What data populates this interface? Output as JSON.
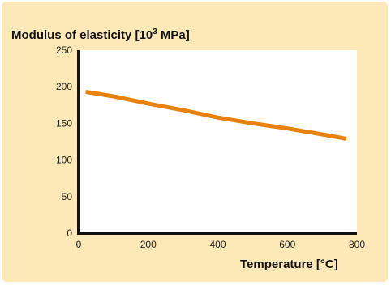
{
  "chart_data": {
    "type": "line",
    "title": {
      "prefix": "Modulus of elasticity [10",
      "superscript": "3",
      "suffix": " MPa]"
    },
    "xlabel": "Temperature [°C]",
    "ylabel": "",
    "xlim": [
      0,
      800
    ],
    "ylim": [
      0,
      250
    ],
    "x_ticks": [
      0,
      200,
      400,
      600,
      800
    ],
    "y_ticks": [
      0,
      50,
      100,
      150,
      200,
      250
    ],
    "grid": false,
    "series": [
      {
        "color": "#e8820c",
        "x": [
          20,
          100,
          200,
          300,
          400,
          500,
          600,
          700,
          770
        ],
        "y": [
          193,
          187,
          177,
          168,
          158,
          150,
          143,
          135,
          129
        ]
      }
    ]
  },
  "colors": {
    "panel_background": "#fde9b7",
    "plot_background": "#ffffff",
    "axis": "#111111",
    "line": "#e8820c"
  }
}
